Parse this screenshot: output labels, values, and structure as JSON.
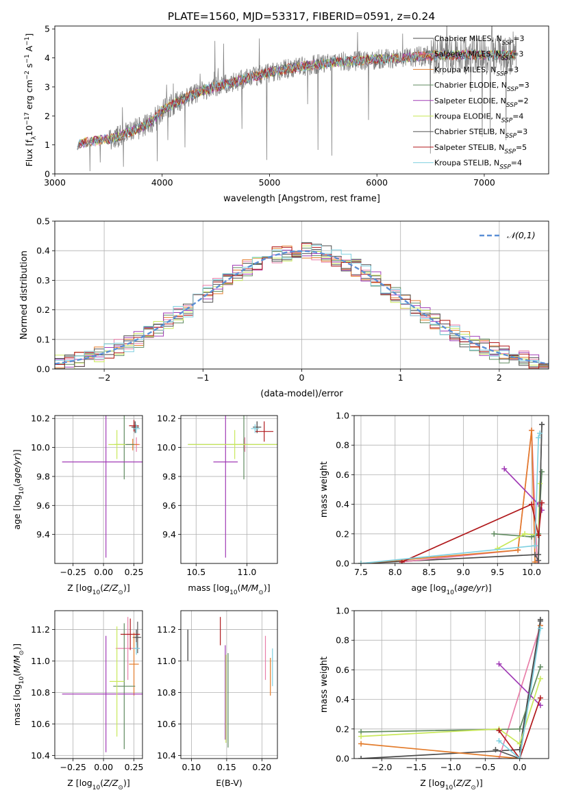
{
  "figure_title": "PLATE=1560, MJD=53317, FIBERID=0591, z=0.24",
  "models": [
    {
      "name": "Chabrier MILES",
      "nssp": "3",
      "color": "#4a4a4a"
    },
    {
      "name": "Salpeter MILES",
      "nssp": "3",
      "color": "#e87da8"
    },
    {
      "name": "Kroupa MILES",
      "nssp": "3",
      "color": "#e37b2a"
    },
    {
      "name": "Chabrier ELODIE",
      "nssp": "3",
      "color": "#5f8a5f"
    },
    {
      "name": "Salpeter ELODIE",
      "nssp": "2",
      "color": "#a03ab5"
    },
    {
      "name": "Kroupa ELODIE",
      "nssp": "4",
      "color": "#c9e85a"
    },
    {
      "name": "Chabrier STELIB",
      "nssp": "3",
      "color": "#555555"
    },
    {
      "name": "Salpeter STELIB",
      "nssp": "5",
      "color": "#b0181b"
    },
    {
      "name": "Kroupa STELIB",
      "nssp": "4",
      "color": "#7fd0e0"
    }
  ],
  "chart_data": [
    {
      "type": "line",
      "id": "spectrum",
      "title": "PLATE=1560, MJD=53317, FIBERID=0591, z=0.24",
      "xlabel": "wavelength [Angstrom, rest frame]",
      "ylabel": "Flux [f_λ 10^-17 erg cm^-2 s^-1 A^-1]",
      "xlim": [
        3000,
        7600
      ],
      "ylim": [
        0,
        5.1
      ],
      "xticks": [
        3000,
        4000,
        5000,
        6000,
        7000
      ],
      "yticks": [
        0,
        1,
        2,
        3,
        4,
        5
      ],
      "grid": false,
      "legend": "top-right",
      "continuum": {
        "x": [
          3210,
          3300,
          3400,
          3500,
          3600,
          3700,
          3800,
          3900,
          4000,
          4200,
          4400,
          4600,
          4800,
          5000,
          5200,
          5400,
          5600,
          5800,
          6000,
          6200,
          6400,
          6600,
          6800,
          7000,
          7200,
          7300
        ],
        "y": [
          1.0,
          1.1,
          1.15,
          1.2,
          1.3,
          1.45,
          1.6,
          1.8,
          2.2,
          2.6,
          2.9,
          3.1,
          3.3,
          3.5,
          3.65,
          3.75,
          3.85,
          3.9,
          3.95,
          4.0,
          4.05,
          4.1,
          4.1,
          4.1,
          4.1,
          4.1
        ]
      }
    },
    {
      "type": "line",
      "id": "residuals",
      "xlabel": "(data-model)/error",
      "ylabel": "Normed distribution",
      "xlim": [
        -2.5,
        2.5
      ],
      "ylim": [
        0,
        0.5
      ],
      "xticks": [
        -2,
        -1,
        0,
        1,
        2
      ],
      "yticks": [
        0.0,
        0.1,
        0.2,
        0.3,
        0.4,
        0.5
      ],
      "grid": true,
      "legend": "top-right",
      "legend_label": "N(0,1)"
    },
    {
      "type": "scatter",
      "id": "age_vs_Z",
      "xlabel": "Z [log10(Z/Z⊙)]",
      "ylabel": "age [log10(age/yr)]",
      "xlim": [
        -0.4,
        0.32
      ],
      "ylim": [
        9.2,
        10.22
      ],
      "xticks": [
        -0.25,
        0.0,
        0.25
      ],
      "yticks": [
        9.4,
        9.6,
        9.8,
        10.0,
        10.2
      ],
      "grid": true,
      "points": [
        {
          "m": 0,
          "x": 0.26,
          "y": 10.14,
          "xerr": 0.03,
          "yerr": 0.04
        },
        {
          "m": 1,
          "x": 0.27,
          "y": 10.02,
          "xerr": 0.03,
          "yerr": 0.05
        },
        {
          "m": 2,
          "x": 0.24,
          "y": 10.02,
          "xerr": 0.05,
          "yerr": 0.04
        },
        {
          "m": 3,
          "x": 0.17,
          "y": 10.02,
          "xerr": 0.08,
          "yerr": 0.24
        },
        {
          "m": 4,
          "x": 0.02,
          "y": 9.9,
          "xerr": 0.36,
          "yerr": 0.66
        },
        {
          "m": 5,
          "x": 0.11,
          "y": 10.02,
          "xerr": 0.07,
          "yerr": 0.1
        },
        {
          "m": 6,
          "x": 0.26,
          "y": 10.14,
          "xerr": 0.03,
          "yerr": 0.04
        },
        {
          "m": 7,
          "x": 0.25,
          "y": 10.15,
          "xerr": 0.04,
          "yerr": 0.04
        },
        {
          "m": 8,
          "x": 0.27,
          "y": 10.13,
          "xerr": 0.03,
          "yerr": 0.03
        }
      ]
    },
    {
      "type": "scatter",
      "id": "age_vs_mass",
      "xlabel": "mass [log10(M/M⊙)]",
      "ylabel": "",
      "xlim": [
        10.35,
        11.3
      ],
      "ylim": [
        9.2,
        10.22
      ],
      "xticks": [
        10.5,
        11.0
      ],
      "yticks": [
        9.4,
        9.6,
        9.8,
        10.0,
        10.2
      ],
      "grid": true,
      "points": [
        {
          "m": 0,
          "x": 11.1,
          "y": 10.14,
          "xerr": 0.04,
          "yerr": 0.04
        },
        {
          "m": 1,
          "x": 10.98,
          "y": 10.02,
          "xerr": 0.04,
          "yerr": 0.05
        },
        {
          "m": 2,
          "x": 10.97,
          "y": 10.02,
          "xerr": 0.04,
          "yerr": 0.04
        },
        {
          "m": 3,
          "x": 10.97,
          "y": 10.02,
          "xerr": 0.55,
          "yerr": 0.24
        },
        {
          "m": 4,
          "x": 10.79,
          "y": 9.9,
          "xerr": 0.12,
          "yerr": 0.66
        },
        {
          "m": 5,
          "x": 10.88,
          "y": 10.02,
          "xerr": 0.46,
          "yerr": 0.1
        },
        {
          "m": 6,
          "x": 11.1,
          "y": 10.14,
          "xerr": 0.04,
          "yerr": 0.04
        },
        {
          "m": 7,
          "x": 11.17,
          "y": 10.11,
          "xerr": 0.09,
          "yerr": 0.07
        },
        {
          "m": 8,
          "x": 11.08,
          "y": 10.13,
          "xerr": 0.04,
          "yerr": 0.03
        }
      ]
    },
    {
      "type": "line",
      "id": "weight_vs_age",
      "xlabel": "age [log10(age/yr)]",
      "ylabel": "mass weight",
      "xlim": [
        7.4,
        10.25
      ],
      "ylim": [
        0,
        1
      ],
      "xticks": [
        7.5,
        8.0,
        8.5,
        9.0,
        9.5,
        10.0
      ],
      "yticks": [
        0.0,
        0.2,
        0.4,
        0.6,
        0.8,
        1.0
      ],
      "grid": true,
      "series": [
        {
          "m": 0,
          "x": [
            7.5,
            10.1,
            10.15
          ],
          "y": [
            0.0,
            0.06,
            0.94
          ]
        },
        {
          "m": 1,
          "x": [
            8.1,
            9.8,
            10.0,
            10.08
          ],
          "y": [
            0.01,
            0.09,
            0.9,
            0.01
          ]
        },
        {
          "m": 2,
          "x": [
            7.5,
            9.8,
            10.0,
            10.05
          ],
          "y": [
            0.0,
            0.09,
            0.9,
            0.01
          ]
        },
        {
          "m": 3,
          "x": [
            9.45,
            10.0,
            10.1,
            10.15
          ],
          "y": [
            0.2,
            0.18,
            0.2,
            0.62
          ]
        },
        {
          "m": 4,
          "x": [
            9.6,
            10.1,
            10.15
          ],
          "y": [
            0.64,
            0.4,
            0.36
          ]
        },
        {
          "m": 5,
          "x": [
            9.5,
            9.9,
            10.1,
            10.12
          ],
          "y": [
            0.1,
            0.2,
            0.19,
            0.54
          ]
        },
        {
          "m": 6,
          "x": [
            10.05,
            10.1,
            10.15
          ],
          "y": [
            0.06,
            0.02,
            0.94
          ]
        },
        {
          "m": 7,
          "x": [
            8.1,
            10.0,
            10.1,
            10.15
          ],
          "y": [
            0.01,
            0.4,
            0.19,
            0.41
          ]
        },
        {
          "m": 8,
          "x": [
            7.5,
            10.05,
            10.1,
            10.12
          ],
          "y": [
            0.0,
            0.12,
            0.85,
            0.88
          ]
        }
      ]
    },
    {
      "type": "scatter",
      "id": "mass_vs_Z",
      "xlabel": "Z [log10(Z/Z⊙)]",
      "ylabel": "mass [log10(M/M⊙)]",
      "xlim": [
        -0.4,
        0.32
      ],
      "ylim": [
        10.38,
        11.32
      ],
      "xticks": [
        -0.25,
        0.0,
        0.25
      ],
      "yticks": [
        10.4,
        10.6,
        10.8,
        11.0,
        11.2
      ],
      "grid": true,
      "points": [
        {
          "m": 0,
          "x": 0.27,
          "y": 11.15,
          "xerr": 0.03,
          "yerr": 0.05
        },
        {
          "m": 1,
          "x": 0.2,
          "y": 11.08,
          "xerr": 0.1,
          "yerr": 0.2
        },
        {
          "m": 2,
          "x": 0.25,
          "y": 10.98,
          "xerr": 0.04,
          "yerr": 0.2
        },
        {
          "m": 3,
          "x": 0.17,
          "y": 10.84,
          "xerr": 0.09,
          "yerr": 0.4
        },
        {
          "m": 4,
          "x": 0.02,
          "y": 10.79,
          "xerr": 0.36,
          "yerr": 0.37
        },
        {
          "m": 5,
          "x": 0.11,
          "y": 10.87,
          "xerr": 0.06,
          "yerr": 0.35
        },
        {
          "m": 6,
          "x": 0.28,
          "y": 11.15,
          "xerr": 0.03,
          "yerr": 0.1
        },
        {
          "m": 7,
          "x": 0.22,
          "y": 11.17,
          "xerr": 0.08,
          "yerr": 0.1
        },
        {
          "m": 8,
          "x": 0.27,
          "y": 11.08,
          "xerr": 0.03,
          "yerr": 0.04
        }
      ]
    },
    {
      "type": "scatter",
      "id": "mass_vs_EBV",
      "xlabel": "E(B-V)",
      "ylabel": "",
      "xlim": [
        0.085,
        0.222
      ],
      "ylim": [
        10.38,
        11.32
      ],
      "xticks": [
        0.1,
        0.15,
        0.2
      ],
      "yticks": [
        10.4,
        10.6,
        10.8,
        11.0,
        11.2
      ],
      "grid": true,
      "points": [
        {
          "m": 0,
          "x": 0.095,
          "y": 11.1,
          "yerr": 0.1
        },
        {
          "m": 1,
          "x": 0.205,
          "y": 11.02,
          "yerr": 0.14
        },
        {
          "m": 2,
          "x": 0.212,
          "y": 10.9,
          "yerr": 0.12
        },
        {
          "m": 3,
          "x": 0.152,
          "y": 10.75,
          "yerr": 0.3
        },
        {
          "m": 4,
          "x": 0.148,
          "y": 10.8,
          "yerr": 0.3
        },
        {
          "m": 5,
          "x": 0.149,
          "y": 10.76,
          "yerr": 0.28
        },
        {
          "m": 6,
          "x": 0.095,
          "y": 11.1,
          "yerr": 0.1
        },
        {
          "m": 7,
          "x": 0.141,
          "y": 11.19,
          "yerr": 0.09
        },
        {
          "m": 8,
          "x": 0.215,
          "y": 10.96,
          "yerr": 0.12
        }
      ]
    },
    {
      "type": "line",
      "id": "weight_vs_Z",
      "xlabel": "Z [log10(Z/Z⊙)]",
      "ylabel": "mass weight",
      "xlim": [
        -2.4,
        0.42
      ],
      "ylim": [
        0,
        1
      ],
      "xticks": [
        -2.0,
        -1.5,
        -1.0,
        -0.5,
        0.0
      ],
      "yticks": [
        0.0,
        0.2,
        0.4,
        0.6,
        0.8,
        1.0
      ],
      "grid": true,
      "series": [
        {
          "m": 0,
          "x": [
            -2.3,
            0.0,
            0.3
          ],
          "y": [
            0.0,
            0.06,
            0.94
          ]
        },
        {
          "m": 1,
          "x": [
            -0.3,
            0.3
          ],
          "y": [
            0.0,
            0.9
          ]
        },
        {
          "m": 2,
          "x": [
            -2.3,
            0.0,
            0.3
          ],
          "y": [
            0.1,
            0.0,
            0.9
          ]
        },
        {
          "m": 3,
          "x": [
            -2.3,
            0.0,
            0.3
          ],
          "y": [
            0.18,
            0.2,
            0.62
          ]
        },
        {
          "m": 4,
          "x": [
            -0.3,
            0.3
          ],
          "y": [
            0.64,
            0.36
          ]
        },
        {
          "m": 5,
          "x": [
            -2.3,
            -0.3,
            0.0,
            0.3
          ],
          "y": [
            0.15,
            0.2,
            0.1,
            0.54
          ]
        },
        {
          "m": 6,
          "x": [
            -0.35,
            0.0,
            0.3
          ],
          "y": [
            0.06,
            0.0,
            0.93
          ]
        },
        {
          "m": 7,
          "x": [
            -0.3,
            0.0,
            0.3
          ],
          "y": [
            0.19,
            0.0,
            0.41
          ]
        },
        {
          "m": 8,
          "x": [
            -0.3,
            0.0,
            0.3
          ],
          "y": [
            0.12,
            0.0,
            0.88
          ]
        }
      ]
    }
  ]
}
